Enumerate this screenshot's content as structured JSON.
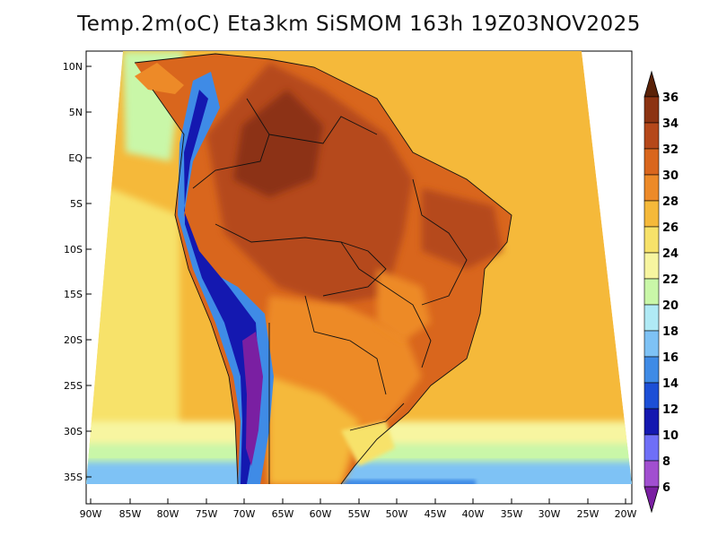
{
  "title": "Temp.2m(oC) Eta3km SiSMOM 163h 19Z03NOV2025",
  "map": {
    "lat_labels": [
      "10N",
      "5N",
      "EQ",
      "5S",
      "10S",
      "15S",
      "20S",
      "25S",
      "30S",
      "35S"
    ],
    "lon_labels": [
      "90W",
      "85W",
      "80W",
      "75W",
      "70W",
      "65W",
      "60W",
      "55W",
      "50W",
      "45W",
      "40W",
      "35W",
      "30W",
      "25W",
      "20W"
    ]
  },
  "colorbar": {
    "labels": [
      "6",
      "8",
      "10",
      "12",
      "14",
      "16",
      "18",
      "20",
      "22",
      "24",
      "26",
      "28",
      "30",
      "32",
      "34",
      "36"
    ],
    "colors": [
      "#7a1fa2",
      "#a14fd0",
      "#6f6ff7",
      "#1418b0",
      "#1c4fd6",
      "#3f8be6",
      "#7ec2f5",
      "#b0eaf5",
      "#c9f7a8",
      "#f7f5a0",
      "#f7e26a",
      "#f5b93a",
      "#ed8a28",
      "#d9661d",
      "#b5481a",
      "#8c3312",
      "#5a2208"
    ]
  }
}
